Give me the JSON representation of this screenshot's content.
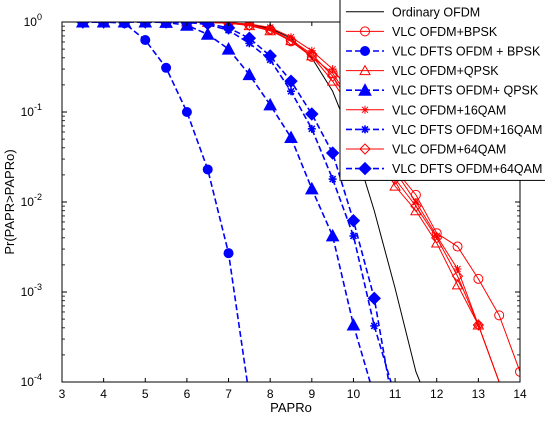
{
  "chart_data": {
    "type": "line",
    "title": "",
    "xlabel": "PAPRo",
    "ylabel": "Pr(PAPR>PAPRo)",
    "xlim": [
      3,
      14
    ],
    "ylim": [
      0.0001,
      1
    ],
    "yscale": "log",
    "grid": false,
    "legend_position": "top-right",
    "x_ticks": [
      "3",
      "4",
      "5",
      "6",
      "7",
      "8",
      "9",
      "10",
      "11",
      "12",
      "13",
      "14"
    ],
    "y_ticks": [
      {
        "value": 1,
        "base": "10",
        "exp": "0"
      },
      {
        "value": 0.1,
        "base": "10",
        "exp": "-1"
      },
      {
        "value": 0.01,
        "base": "10",
        "exp": "-2"
      },
      {
        "value": 0.001,
        "base": "10",
        "exp": "-3"
      },
      {
        "value": 0.0001,
        "base": "10",
        "exp": "-4"
      }
    ],
    "series": [
      {
        "name": "Ordinary OFDM",
        "color": "#000000",
        "dash": "solid",
        "marker": "none",
        "width": 1,
        "points": [
          [
            3,
            1
          ],
          [
            6,
            1
          ],
          [
            7,
            0.98
          ],
          [
            7.5,
            0.94
          ],
          [
            8,
            0.85
          ],
          [
            8.5,
            0.66
          ],
          [
            9,
            0.4
          ],
          [
            9.5,
            0.17
          ],
          [
            10,
            0.045
          ],
          [
            10.5,
            0.008
          ],
          [
            11,
            0.0011
          ],
          [
            11.5,
            0.00013
          ],
          [
            11.6,
            0.0001
          ]
        ]
      },
      {
        "name": "VLC OFDM+BPSK",
        "color": "#ff0000",
        "dash": "solid",
        "marker": "circle-open",
        "width": 1,
        "points": [
          [
            3.5,
            1
          ],
          [
            4,
            1
          ],
          [
            4.5,
            1
          ],
          [
            5,
            1
          ],
          [
            5.5,
            1
          ],
          [
            6,
            1
          ],
          [
            6.5,
            0.99
          ],
          [
            7,
            0.97
          ],
          [
            7.5,
            0.93
          ],
          [
            8,
            0.82
          ],
          [
            8.5,
            0.61
          ],
          [
            9,
            0.41
          ],
          [
            9.5,
            0.27
          ],
          [
            10,
            0.12
          ],
          [
            10.5,
            0.055
          ],
          [
            11,
            0.023
          ],
          [
            11.5,
            0.012
          ],
          [
            12,
            0.0045
          ],
          [
            12.5,
            0.0032
          ],
          [
            13,
            0.0014
          ],
          [
            13.5,
            0.00055
          ],
          [
            14,
            0.00013
          ]
        ]
      },
      {
        "name": "VLC DFTS OFDM + BPSK",
        "color": "#0000ff",
        "dash": "dash",
        "marker": "circle-filled",
        "width": 1.6,
        "points": [
          [
            3.5,
            1
          ],
          [
            4,
            1
          ],
          [
            4.5,
            0.97
          ],
          [
            5,
            0.63
          ],
          [
            5.5,
            0.31
          ],
          [
            6,
            0.1
          ],
          [
            6.5,
            0.023
          ],
          [
            7,
            0.0027
          ],
          [
            7.45,
            0.0001
          ]
        ]
      },
      {
        "name": "VLC OFDM+QPSK",
        "color": "#ff0000",
        "dash": "solid",
        "marker": "triangle-open",
        "width": 1,
        "points": [
          [
            3.5,
            1
          ],
          [
            4,
            1
          ],
          [
            4.5,
            1
          ],
          [
            5,
            1
          ],
          [
            5.5,
            1
          ],
          [
            6,
            1
          ],
          [
            6.5,
            0.99
          ],
          [
            7,
            0.97
          ],
          [
            7.5,
            0.91
          ],
          [
            8,
            0.8
          ],
          [
            8.5,
            0.62
          ],
          [
            9,
            0.42
          ],
          [
            9.5,
            0.22
          ],
          [
            10,
            0.1
          ],
          [
            10.5,
            0.04
          ],
          [
            11,
            0.015
          ],
          [
            11.5,
            0.008
          ],
          [
            12,
            0.0035
          ],
          [
            12.5,
            0.0012
          ],
          [
            13,
            0.00043
          ],
          [
            13.5,
            0.0001
          ]
        ]
      },
      {
        "name": "VLC DFTS OFDM+ QPSK",
        "color": "#0000ff",
        "dash": "dash",
        "marker": "triangle-filled",
        "width": 1.6,
        "points": [
          [
            3.5,
            1
          ],
          [
            4,
            1
          ],
          [
            4.5,
            1
          ],
          [
            5,
            1
          ],
          [
            5.5,
            0.99
          ],
          [
            6,
            0.92
          ],
          [
            6.5,
            0.73
          ],
          [
            7,
            0.5
          ],
          [
            7.5,
            0.26
          ],
          [
            8,
            0.12
          ],
          [
            8.5,
            0.052
          ],
          [
            9,
            0.014
          ],
          [
            9.5,
            0.0042
          ],
          [
            10,
            0.00043
          ],
          [
            10.4,
            0.0001
          ]
        ]
      },
      {
        "name": "VLC OFDM+16QAM",
        "color": "#ff0000",
        "dash": "solid",
        "marker": "star",
        "width": 1,
        "points": [
          [
            3.5,
            1
          ],
          [
            4,
            1
          ],
          [
            4.5,
            1
          ],
          [
            5,
            1
          ],
          [
            5.5,
            1
          ],
          [
            6,
            1
          ],
          [
            6.5,
            1
          ],
          [
            7,
            0.98
          ],
          [
            7.5,
            0.95
          ],
          [
            8,
            0.87
          ],
          [
            8.5,
            0.68
          ],
          [
            9,
            0.48
          ],
          [
            9.5,
            0.3
          ],
          [
            10,
            0.15
          ],
          [
            10.5,
            0.06
          ],
          [
            11,
            0.022
          ],
          [
            11.5,
            0.01
          ],
          [
            12,
            0.0042
          ],
          [
            12.5,
            0.0018
          ],
          [
            13,
            0.00043
          ],
          [
            13.5,
            0.0001
          ]
        ]
      },
      {
        "name": "VLC DFTS OFDM+16QAM",
        "color": "#0000ff",
        "dash": "dash",
        "marker": "plus-star",
        "width": 1.6,
        "points": [
          [
            3.5,
            1
          ],
          [
            4,
            1
          ],
          [
            4.5,
            1
          ],
          [
            5,
            1
          ],
          [
            5.5,
            1
          ],
          [
            6,
            0.99
          ],
          [
            6.5,
            0.94
          ],
          [
            7,
            0.81
          ],
          [
            7.5,
            0.58
          ],
          [
            8,
            0.38
          ],
          [
            8.5,
            0.17
          ],
          [
            9,
            0.065
          ],
          [
            9.5,
            0.018
          ],
          [
            10,
            0.0042
          ],
          [
            10.5,
            0.00042
          ],
          [
            10.9,
            0.0001
          ]
        ]
      },
      {
        "name": "VLC OFDM+64QAM",
        "color": "#ff0000",
        "dash": "solid",
        "marker": "diamond-open",
        "width": 1,
        "points": [
          [
            3.5,
            1
          ],
          [
            4,
            1
          ],
          [
            4.5,
            1
          ],
          [
            5,
            1
          ],
          [
            5.5,
            1
          ],
          [
            6,
            1
          ],
          [
            6.5,
            0.99
          ],
          [
            7,
            0.97
          ],
          [
            7.5,
            0.92
          ],
          [
            8,
            0.83
          ],
          [
            8.5,
            0.63
          ],
          [
            9,
            0.44
          ],
          [
            9.5,
            0.25
          ],
          [
            10,
            0.11
          ],
          [
            10.5,
            0.045
          ],
          [
            11,
            0.018
          ],
          [
            11.5,
            0.009
          ],
          [
            12,
            0.004
          ],
          [
            12.5,
            0.0015
          ],
          [
            13,
            0.00043
          ],
          [
            13.5,
            0.0001
          ]
        ]
      },
      {
        "name": "VLC DFTS OFDM+64QAM",
        "color": "#0000ff",
        "dash": "dash",
        "marker": "diamond-filled",
        "width": 1.6,
        "points": [
          [
            3.5,
            1
          ],
          [
            4,
            1
          ],
          [
            4.5,
            1
          ],
          [
            5,
            1
          ],
          [
            5.5,
            1
          ],
          [
            6,
            0.99
          ],
          [
            6.5,
            0.96
          ],
          [
            7,
            0.86
          ],
          [
            7.5,
            0.66
          ],
          [
            8,
            0.42
          ],
          [
            8.5,
            0.22
          ],
          [
            9,
            0.095
          ],
          [
            9.5,
            0.035
          ],
          [
            10,
            0.0062
          ],
          [
            10.5,
            0.00085
          ],
          [
            10.85,
            0.0001
          ]
        ]
      }
    ]
  }
}
